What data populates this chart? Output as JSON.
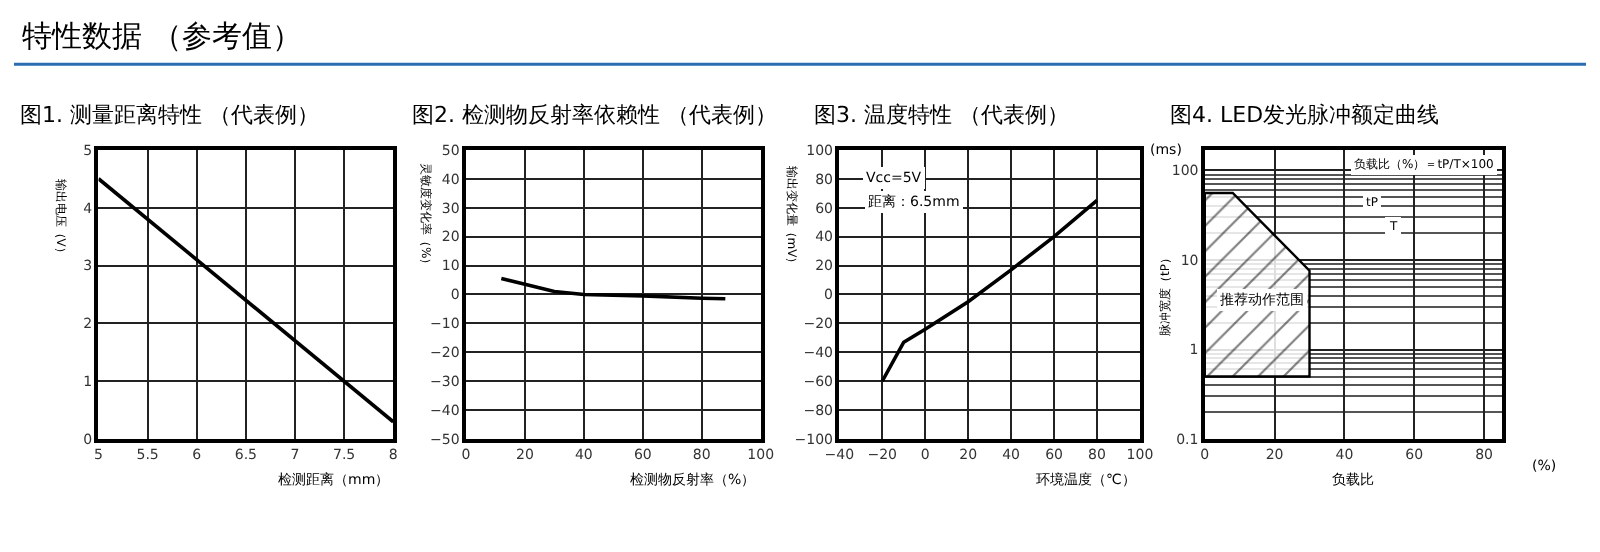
{
  "chart_data": [
    {
      "type": "line",
      "title": "图1. 测量距离特性 （代表例）",
      "xlabel": "检测距离（mm）",
      "ylabel": "输出电压（V）",
      "annotations": [
        "特性数据 （参考值）"
      ],
      "x": [
        5,
        8
      ],
      "series": [
        {
          "color": "#000000",
          "values": [
            4.5,
            0.3
          ]
        }
      ],
      "xlim": [
        5,
        8
      ],
      "xticks": [
        5,
        5.5,
        6,
        6.5,
        7,
        7.5,
        8
      ],
      "ylim": [
        0,
        5
      ],
      "yticks": [
        0,
        1,
        2,
        3,
        4,
        5
      ],
      "grid": true
    },
    {
      "type": "line",
      "title": "图2. 检测物反射率依赖性 （代表例）",
      "xlabel": "检测物反射率（%）",
      "ylabel": "灵敏度变化率（%）",
      "x": [
        12,
        20,
        30,
        40,
        60,
        80,
        88
      ],
      "series": [
        {
          "color": "#000000",
          "values": [
            5.5,
            3.5,
            1,
            0,
            -0.5,
            -1.3,
            -1.5
          ]
        }
      ],
      "xlim": [
        0,
        100
      ],
      "xticks": [
        0,
        20,
        40,
        60,
        80,
        100
      ],
      "ylim": [
        -50,
        50
      ],
      "yticks": [
        -50,
        -40,
        -30,
        -20,
        -10,
        0,
        10,
        20,
        30,
        40,
        50
      ],
      "grid": true
    },
    {
      "type": "line",
      "title": "图3. 温度特性 （代表例）",
      "xlabel": "环境温度（℃）",
      "ylabel": "输出变化量（mV）",
      "annotations": [
        "Vcc=5V",
        "距离：6.5mm"
      ],
      "x": [
        -20,
        -10,
        0,
        20,
        40,
        60,
        80
      ],
      "series": [
        {
          "color": "#000000",
          "values": [
            -60,
            -33,
            -24,
            -5,
            17,
            40,
            65
          ]
        }
      ],
      "xlim": [
        -40,
        100
      ],
      "xticks": [
        -40,
        -20,
        0,
        20,
        40,
        60,
        80,
        100
      ],
      "ylim": [
        -100,
        100
      ],
      "yticks": [
        -100,
        -80,
        -60,
        -40,
        -20,
        0,
        20,
        40,
        60,
        80,
        100
      ],
      "grid": true
    },
    {
      "type": "area",
      "title": "图4. LED发光脉冲额定曲线",
      "xlabel": "负载比",
      "ylabel": "脉冲宽度（tP）",
      "annotations": [
        "(ms)",
        "(%)",
        "推荐动作范围",
        "负载比（%）＝tP/T×100",
        "tP",
        "T"
      ],
      "x": [
        0,
        0,
        8,
        30,
        30
      ],
      "series": [
        {
          "color": "#000000",
          "values": [
            0.5,
            56,
            56,
            7.6,
            0.5
          ]
        }
      ],
      "xlim": [
        0,
        85
      ],
      "xticks": [
        0,
        20,
        40,
        60,
        80
      ],
      "ylim": [
        0.1,
        170
      ],
      "yticks": [
        0.1,
        1,
        10,
        100
      ],
      "log": "y",
      "grid": true
    }
  ]
}
